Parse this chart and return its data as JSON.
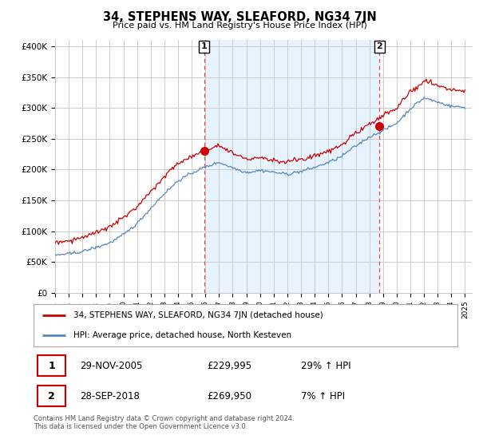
{
  "title": "34, STEPHENS WAY, SLEAFORD, NG34 7JN",
  "subtitle": "Price paid vs. HM Land Registry's House Price Index (HPI)",
  "ylabel_ticks": [
    "£0",
    "£50K",
    "£100K",
    "£150K",
    "£200K",
    "£250K",
    "£300K",
    "£350K",
    "£400K"
  ],
  "ytick_values": [
    0,
    50000,
    100000,
    150000,
    200000,
    250000,
    300000,
    350000,
    400000
  ],
  "ylim": [
    0,
    410000
  ],
  "xlim_start": 1995.0,
  "xlim_end": 2025.5,
  "legend_label_red": "34, STEPHENS WAY, SLEAFORD, NG34 7JN (detached house)",
  "legend_label_blue": "HPI: Average price, detached house, North Kesteven",
  "sale1_label": "1",
  "sale1_date": "29-NOV-2005",
  "sale1_price": "£229,995",
  "sale1_hpi": "29% ↑ HPI",
  "sale1_x": 2005.9,
  "sale1_y": 229995,
  "sale2_label": "2",
  "sale2_date": "28-SEP-2018",
  "sale2_price": "£269,950",
  "sale2_hpi": "7% ↑ HPI",
  "sale2_x": 2018.75,
  "sale2_y": 269950,
  "footer": "Contains HM Land Registry data © Crown copyright and database right 2024.\nThis data is licensed under the Open Government Licence v3.0.",
  "red_color": "#cc0000",
  "blue_color": "#5588bb",
  "shade_color": "#ddeeff",
  "vline_color": "#ee4444",
  "background_color": "#ffffff",
  "grid_color": "#cccccc",
  "hpi_annual": [
    60000,
    62000,
    67000,
    74000,
    82000,
    95000,
    113000,
    138000,
    162000,
    183000,
    195000,
    205000,
    213000,
    204000,
    196000,
    199000,
    196000,
    193000,
    196000,
    203000,
    211000,
    221000,
    238000,
    253000,
    263000,
    275000,
    298000,
    315000,
    308000,
    302000,
    300000
  ],
  "red_annual": [
    80000,
    83000,
    88000,
    95000,
    105000,
    119000,
    138000,
    163000,
    187000,
    209000,
    220000,
    232000,
    240000,
    228000,
    218000,
    220000,
    216000,
    213000,
    217000,
    224000,
    232000,
    243000,
    261000,
    277000,
    288000,
    302000,
    327000,
    343000,
    337000,
    330000,
    328000
  ]
}
